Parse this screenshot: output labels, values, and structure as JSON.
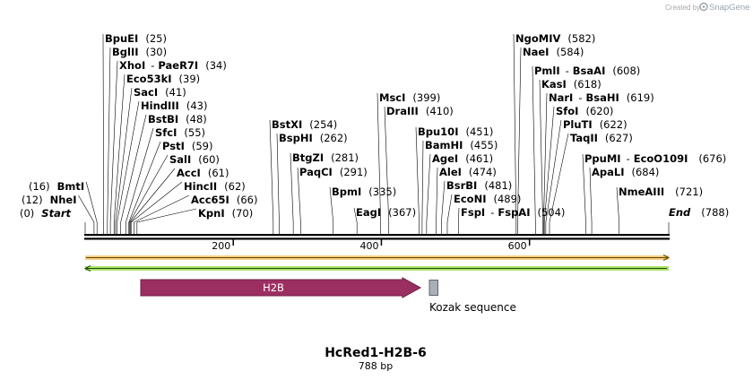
{
  "watermark": {
    "prefix": "Created by",
    "brand": "SnapGene"
  },
  "map": {
    "name": "HcRed1-H2B-6",
    "length_label": "788 bp",
    "total_bp": 788,
    "start_label": "Start",
    "end_label": "End",
    "start_pos_text": "(0)",
    "end_pos_text": "(788)",
    "ticks": [
      {
        "bp": 200,
        "label": "200"
      },
      {
        "bp": 400,
        "label": "400"
      },
      {
        "bp": 600,
        "label": "600"
      }
    ]
  },
  "sites": [
    {
      "names": [
        "BpuEI"
      ],
      "pos_text": "(25)",
      "bp": 25
    },
    {
      "names": [
        "BglII"
      ],
      "pos_text": "(30)",
      "bp": 30
    },
    {
      "names": [
        "XhoI",
        "PaeR7I"
      ],
      "pos_text": "(34)",
      "bp": 34
    },
    {
      "names": [
        "Eco53kI"
      ],
      "pos_text": "(39)",
      "bp": 39
    },
    {
      "names": [
        "SacI"
      ],
      "pos_text": "(41)",
      "bp": 41
    },
    {
      "names": [
        "HindIII"
      ],
      "pos_text": "(43)",
      "bp": 43
    },
    {
      "names": [
        "BstBI"
      ],
      "pos_text": "(48)",
      "bp": 48
    },
    {
      "names": [
        "SfcI"
      ],
      "pos_text": "(55)",
      "bp": 55
    },
    {
      "names": [
        "PstI"
      ],
      "pos_text": "(59)",
      "bp": 59
    },
    {
      "names": [
        "SalI"
      ],
      "pos_text": "(60)",
      "bp": 60
    },
    {
      "names": [
        "AccI"
      ],
      "pos_text": "(61)",
      "bp": 61
    },
    {
      "names": [
        "HincII"
      ],
      "pos_text": "(62)",
      "bp": 62
    },
    {
      "names": [
        "Acc65I"
      ],
      "pos_text": "(66)",
      "bp": 66
    },
    {
      "names": [
        "KpnI"
      ],
      "pos_text": "(70)",
      "bp": 70
    },
    {
      "names": [
        "BmtI"
      ],
      "pos_text": "(16)",
      "bp": 16
    },
    {
      "names": [
        "NheI"
      ],
      "pos_text": "(12)",
      "bp": 12
    },
    {
      "names": [
        "BstXI"
      ],
      "pos_text": "(254)",
      "bp": 254
    },
    {
      "names": [
        "BspHI"
      ],
      "pos_text": "(262)",
      "bp": 262
    },
    {
      "names": [
        "BtgZI"
      ],
      "pos_text": "(281)",
      "bp": 281
    },
    {
      "names": [
        "PaqCI"
      ],
      "pos_text": "(291)",
      "bp": 291
    },
    {
      "names": [
        "BpmI"
      ],
      "pos_text": "(335)",
      "bp": 335
    },
    {
      "names": [
        "MscI"
      ],
      "pos_text": "(399)",
      "bp": 399
    },
    {
      "names": [
        "DraIII"
      ],
      "pos_text": "(410)",
      "bp": 410
    },
    {
      "names": [
        "EagI"
      ],
      "pos_text": "(367)",
      "bp": 367
    },
    {
      "names": [
        "Bpu10I"
      ],
      "pos_text": "(451)",
      "bp": 451
    },
    {
      "names": [
        "BamHI"
      ],
      "pos_text": "(455)",
      "bp": 455
    },
    {
      "names": [
        "AgeI"
      ],
      "pos_text": "(461)",
      "bp": 461
    },
    {
      "names": [
        "AleI"
      ],
      "pos_text": "(474)",
      "bp": 474
    },
    {
      "names": [
        "BsrBI"
      ],
      "pos_text": "(481)",
      "bp": 481
    },
    {
      "names": [
        "EcoNI"
      ],
      "pos_text": "(489)",
      "bp": 489
    },
    {
      "names": [
        "FspI",
        "FspAI"
      ],
      "pos_text": "(504)",
      "bp": 504
    },
    {
      "names": [
        "NgoMIV"
      ],
      "pos_text": "(582)",
      "bp": 582
    },
    {
      "names": [
        "NaeI"
      ],
      "pos_text": "(584)",
      "bp": 584
    },
    {
      "names": [
        "PmlI",
        "BsaAI"
      ],
      "pos_text": "(608)",
      "bp": 608
    },
    {
      "names": [
        "KasI"
      ],
      "pos_text": "(618)",
      "bp": 618
    },
    {
      "names": [
        "NarI",
        "BsaHI"
      ],
      "pos_text": "(619)",
      "bp": 619
    },
    {
      "names": [
        "SfoI"
      ],
      "pos_text": "(620)",
      "bp": 620
    },
    {
      "names": [
        "PluTI"
      ],
      "pos_text": "(622)",
      "bp": 622
    },
    {
      "names": [
        "TaqII"
      ],
      "pos_text": "(627)",
      "bp": 627
    },
    {
      "names": [
        "PpuMI",
        "EcoO109I"
      ],
      "pos_text": "(676)",
      "bp": 676
    },
    {
      "names": [
        "ApaLI"
      ],
      "pos_text": "(684)",
      "bp": 684
    },
    {
      "names": [
        "NmeAIII"
      ],
      "pos_text": "(721)",
      "bp": 721
    }
  ],
  "features": [
    {
      "label": "H2B",
      "type": "arrow",
      "start_bp": 75,
      "end_bp": 450,
      "color": "#9c2f62"
    },
    {
      "label": "Kozak sequence",
      "type": "box",
      "start_bp": 466,
      "end_bp": 477,
      "color": "#a9b0b7"
    }
  ],
  "strands": {
    "forward_color": "#f5a623",
    "reverse_color": "#7ed321"
  }
}
